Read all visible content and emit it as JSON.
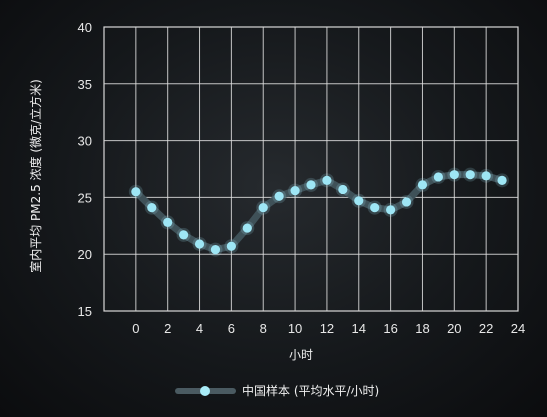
{
  "chart_data": {
    "type": "line",
    "xlabel": "小时",
    "ylabel": "室内平均 PM2.5 浓度 (微克/立方米)",
    "xlim": [
      -2,
      24
    ],
    "ylim": [
      15,
      40
    ],
    "xticks": [
      0,
      2,
      4,
      6,
      8,
      10,
      12,
      14,
      16,
      18,
      20,
      22,
      24
    ],
    "yticks": [
      15,
      20,
      25,
      30,
      35,
      40
    ],
    "grid": true,
    "legend_position": "bottom-center",
    "series": [
      {
        "name": "中国样本 (平均水平/小时)",
        "color": "#9ee6f5",
        "x": [
          0,
          1,
          2,
          3,
          4,
          5,
          6,
          7,
          8,
          9,
          10,
          11,
          12,
          13,
          14,
          15,
          16,
          17,
          18,
          19,
          20,
          21,
          22,
          23
        ],
        "values": [
          25.5,
          24.1,
          22.8,
          21.7,
          20.9,
          20.4,
          20.7,
          22.3,
          24.1,
          25.1,
          25.6,
          26.1,
          26.5,
          25.7,
          24.7,
          24.1,
          23.9,
          24.6,
          26.1,
          26.8,
          27.0,
          27.0,
          26.9,
          26.5
        ]
      }
    ],
    "highlight_color": "#ff2020",
    "highlight_tick": 40
  }
}
